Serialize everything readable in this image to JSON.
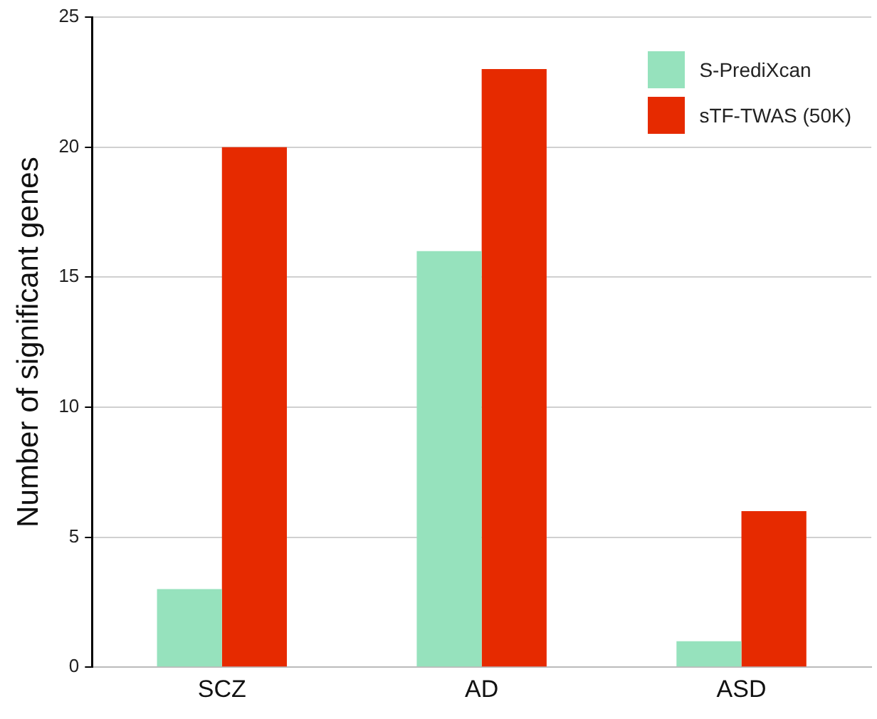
{
  "chart_data": {
    "type": "bar",
    "ylabel": "Number of significant genes",
    "categories": [
      "SCZ",
      "AD",
      "ASD"
    ],
    "series": [
      {
        "name": "S-PrediXcan",
        "color": "#96e2bd",
        "values": [
          3,
          16,
          1
        ]
      },
      {
        "name": "sTF-TWAS (50K)",
        "color": "#e62a00",
        "values": [
          20,
          23,
          6
        ]
      }
    ],
    "ylim": [
      0,
      25
    ],
    "yticks": [
      0,
      5,
      10,
      15,
      20,
      25
    ],
    "grid": "y",
    "legend": "top right"
  }
}
